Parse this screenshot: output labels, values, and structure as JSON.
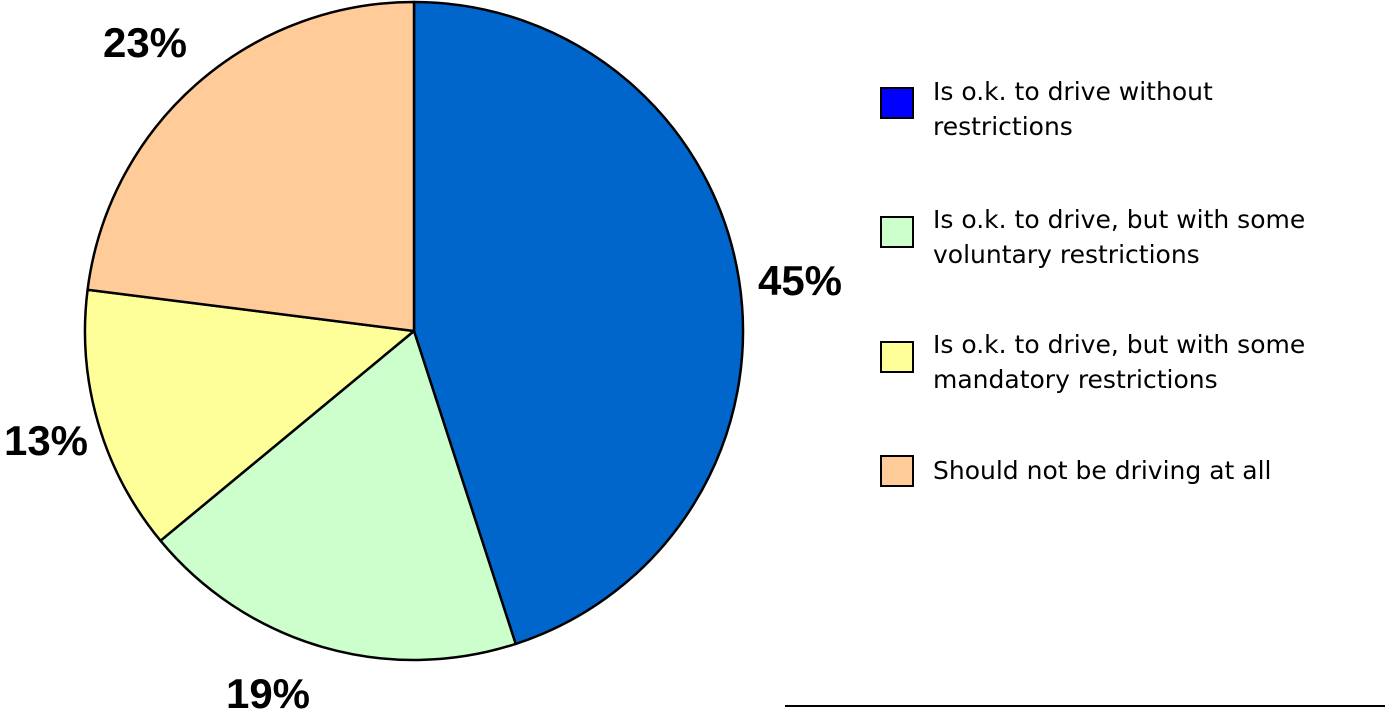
{
  "chart_data": {
    "type": "pie",
    "title": "",
    "slices": [
      {
        "label": "Is o.k. to drive without restrictions",
        "value": 45,
        "value_label": "45%",
        "color": "#0066CC",
        "legend_color": "#0000FF"
      },
      {
        "label": "Is o.k. to drive, but with some voluntary restrictions",
        "value": 19,
        "value_label": "19%",
        "color": "#CCFFCC",
        "legend_color": "#CCFFCC"
      },
      {
        "label": "Is o.k. to drive, but with some mandatory restrictions",
        "value": 13,
        "value_label": "13%",
        "color": "#FFFF99",
        "legend_color": "#FFFF99"
      },
      {
        "label": "Should not be driving at all",
        "value": 23,
        "value_label": "23%",
        "color": "#FFCC99",
        "legend_color": "#FFCC99"
      }
    ],
    "legend": {
      "placement": "right",
      "entries": [
        {
          "lines": [
            "Is o.k. to drive without",
            "restrictions"
          ]
        },
        {
          "lines": [
            "Is o.k. to drive, but with some",
            "voluntary restrictions"
          ]
        },
        {
          "lines": [
            "Is o.k. to drive, but with some",
            "mandatory restrictions"
          ]
        },
        {
          "lines": [
            "Should not be driving at all"
          ]
        }
      ]
    }
  }
}
